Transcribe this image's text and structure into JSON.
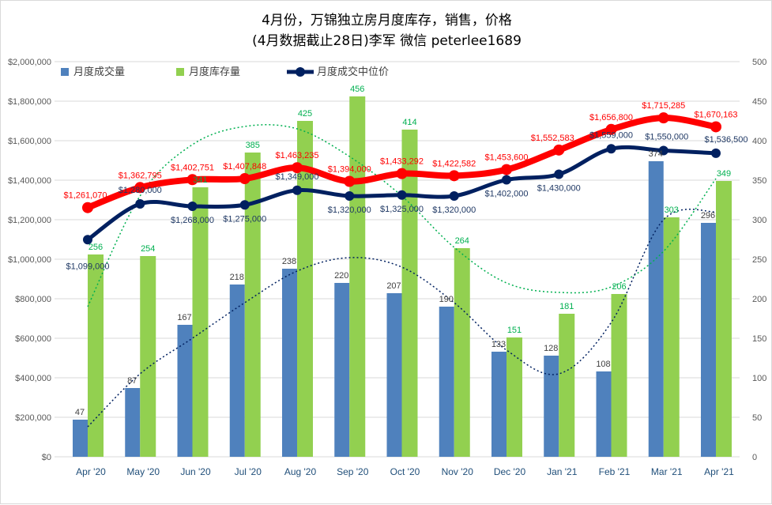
{
  "chart_data": {
    "type": "bar+line",
    "title": "4月份，万锦独立房月度库存，销售，价格",
    "subtitle": "(4月数据截止28日)李军  微信 peterlee1689",
    "categories": [
      "Apr '20",
      "May '20",
      "Jun '20",
      "Jul '20",
      "Aug '20",
      "Sep '20",
      "Oct '20",
      "Nov '20",
      "Dec '20",
      "Jan '21",
      "Feb '21",
      "Mar '21",
      "Apr '21"
    ],
    "left_axis": {
      "min": 0,
      "max": 2000000,
      "step": 200000,
      "format": "currency"
    },
    "right_axis": {
      "min": 0,
      "max": 500,
      "step": 50
    },
    "grid": true,
    "legend_position": "top-left",
    "series": [
      {
        "name": "月度成交量",
        "type": "bar",
        "axis": "right",
        "color": "#4f81bd",
        "label_color": "#404040",
        "values": [
          47,
          87,
          167,
          218,
          238,
          220,
          207,
          190,
          133,
          128,
          108,
          374,
          296
        ]
      },
      {
        "name": "月度库存量",
        "type": "bar",
        "axis": "right",
        "color": "#92d050",
        "label_color": "#00b050",
        "values": [
          256,
          254,
          341,
          385,
          425,
          456,
          414,
          264,
          151,
          181,
          206,
          303,
          349
        ]
      },
      {
        "name": "月度成交中位价",
        "type": "line",
        "axis": "left",
        "color": "#002060",
        "label_color": "#1f3864",
        "values": [
          1099000,
          1280000,
          1268000,
          1275000,
          1349000,
          1320000,
          1325000,
          1320000,
          1402000,
          1430000,
          1559000,
          1550000,
          1536500
        ]
      },
      {
        "type": "line",
        "axis": "left",
        "color": "#ff0000",
        "label_color": "#ff0000",
        "values": [
          1261070,
          1362795,
          1402751,
          1407848,
          1463235,
          1394000,
          1433292,
          1422582,
          1453600,
          1552583,
          1656800,
          1715285,
          1670163
        ]
      }
    ],
    "trendlines": [
      {
        "of": "月度成交量",
        "style": "dotted",
        "color": "#002060"
      },
      {
        "of": "月度库存量",
        "style": "dotted",
        "color": "#00b050"
      }
    ]
  }
}
